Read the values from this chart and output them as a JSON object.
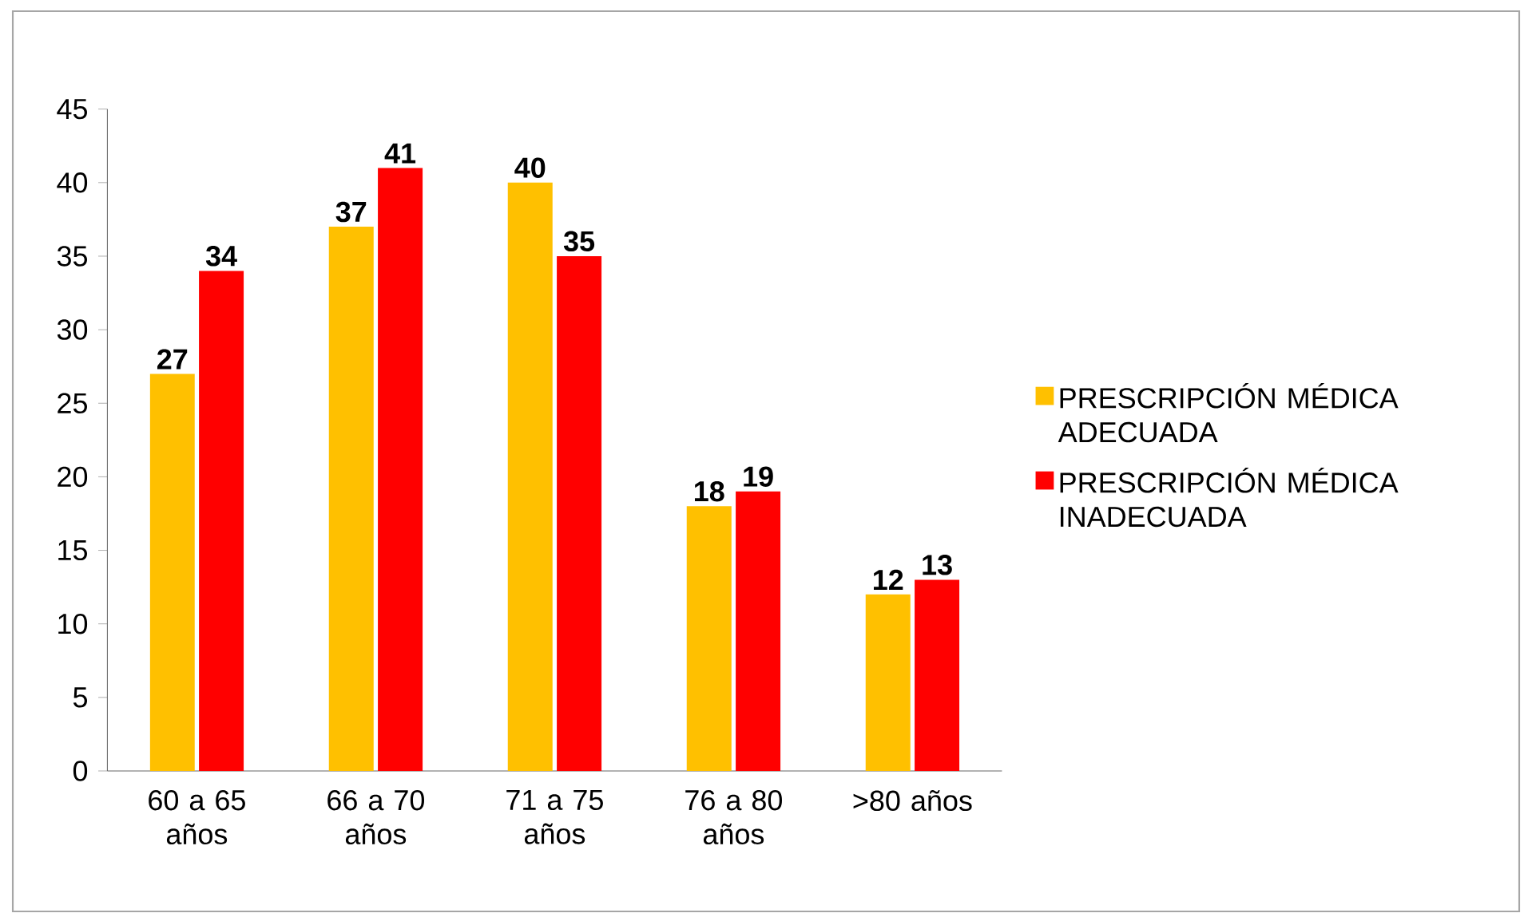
{
  "chart_data": {
    "type": "bar",
    "categories": [
      "60 a 65 años",
      "66 a 70 años",
      "71 a 75 años",
      "76 a 80 años",
      ">80 años"
    ],
    "series": [
      {
        "name": "PRESCRIPCIÓN MÉDICA ADECUADA",
        "color": "#ffc000",
        "values": [
          27,
          37,
          40,
          18,
          12
        ]
      },
      {
        "name": "PRESCRIPCIÓN MÉDICA INADECUADA",
        "color": "#ff0000",
        "values": [
          34,
          41,
          35,
          19,
          13
        ]
      }
    ],
    "ylim": [
      0,
      45
    ],
    "yticks": [
      0,
      5,
      10,
      15,
      20,
      25,
      30,
      35,
      40,
      45
    ],
    "data_labels": true,
    "legend": "right"
  }
}
